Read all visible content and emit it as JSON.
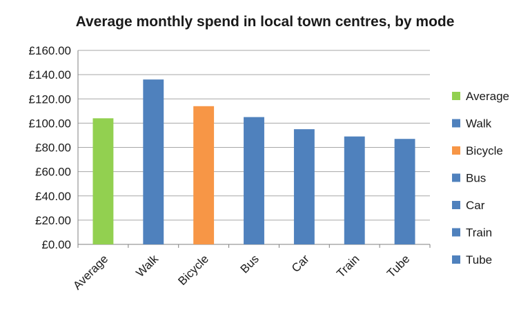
{
  "chart_data": {
    "type": "bar",
    "title": "Average monthly spend in local town centres, by mode",
    "xlabel": "",
    "ylabel": "",
    "categories": [
      "Average",
      "Walk",
      "Bicycle",
      "Bus",
      "Car",
      "Train",
      "Tube"
    ],
    "values": [
      104,
      136,
      114,
      105,
      95,
      89,
      87
    ],
    "colors": [
      "#92d050",
      "#4f81bd",
      "#f79646",
      "#4f81bd",
      "#4f81bd",
      "#4f81bd",
      "#4f81bd"
    ],
    "ylim": [
      0,
      160
    ],
    "y_ticks": [
      0,
      20,
      40,
      60,
      80,
      100,
      120,
      140,
      160
    ],
    "y_tick_labels": [
      "£0.00",
      "£20.00",
      "£40.00",
      "£60.00",
      "£80.00",
      "£100.00",
      "£120.00",
      "£140.00",
      "£160.00"
    ],
    "grid": true,
    "legend": {
      "placement": "right",
      "entries": [
        "Average",
        "Walk",
        "Bicycle",
        "Bus",
        "Car",
        "Train",
        "Tube"
      ]
    }
  }
}
